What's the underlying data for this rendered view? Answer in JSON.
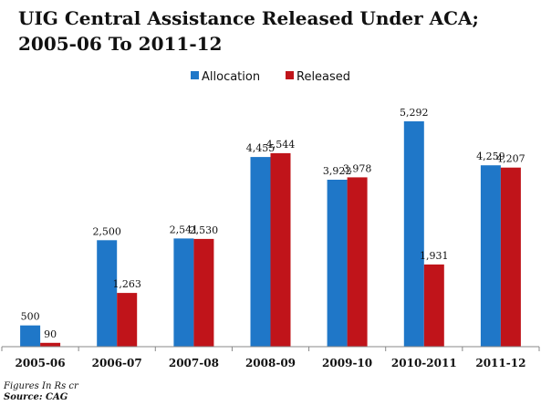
{
  "chart_data": {
    "type": "bar",
    "title_line1": "UIG Central Assistance Released Under ACA;",
    "title_line2": "2005-06 To 2011-12",
    "categories": [
      "2005-06",
      "2006-07",
      "2007-08",
      "2008-09",
      "2009-10",
      "2010-2011",
      "2011-12"
    ],
    "series": [
      {
        "name": "Allocation",
        "color": "#1f77c8",
        "values": [
          500,
          2500,
          2541,
          4455,
          3922,
          5292,
          4259
        ],
        "labels": [
          "500",
          "2,500",
          "2,541",
          "4,455",
          "3,922",
          "5,292",
          "4,259"
        ]
      },
      {
        "name": "Released",
        "color": "#c0141a",
        "values": [
          90,
          1263,
          2530,
          4544,
          3978,
          1931,
          4207
        ],
        "labels": [
          "90",
          "1,263",
          "2,530",
          "4,544",
          "3,978",
          "1,931",
          "4,207"
        ]
      }
    ],
    "ylim": [
      0,
      6000
    ],
    "grid": false,
    "legend_position": "top-center"
  },
  "footer": {
    "note": "Figures In Rs cr",
    "source": "Source: CAG"
  }
}
